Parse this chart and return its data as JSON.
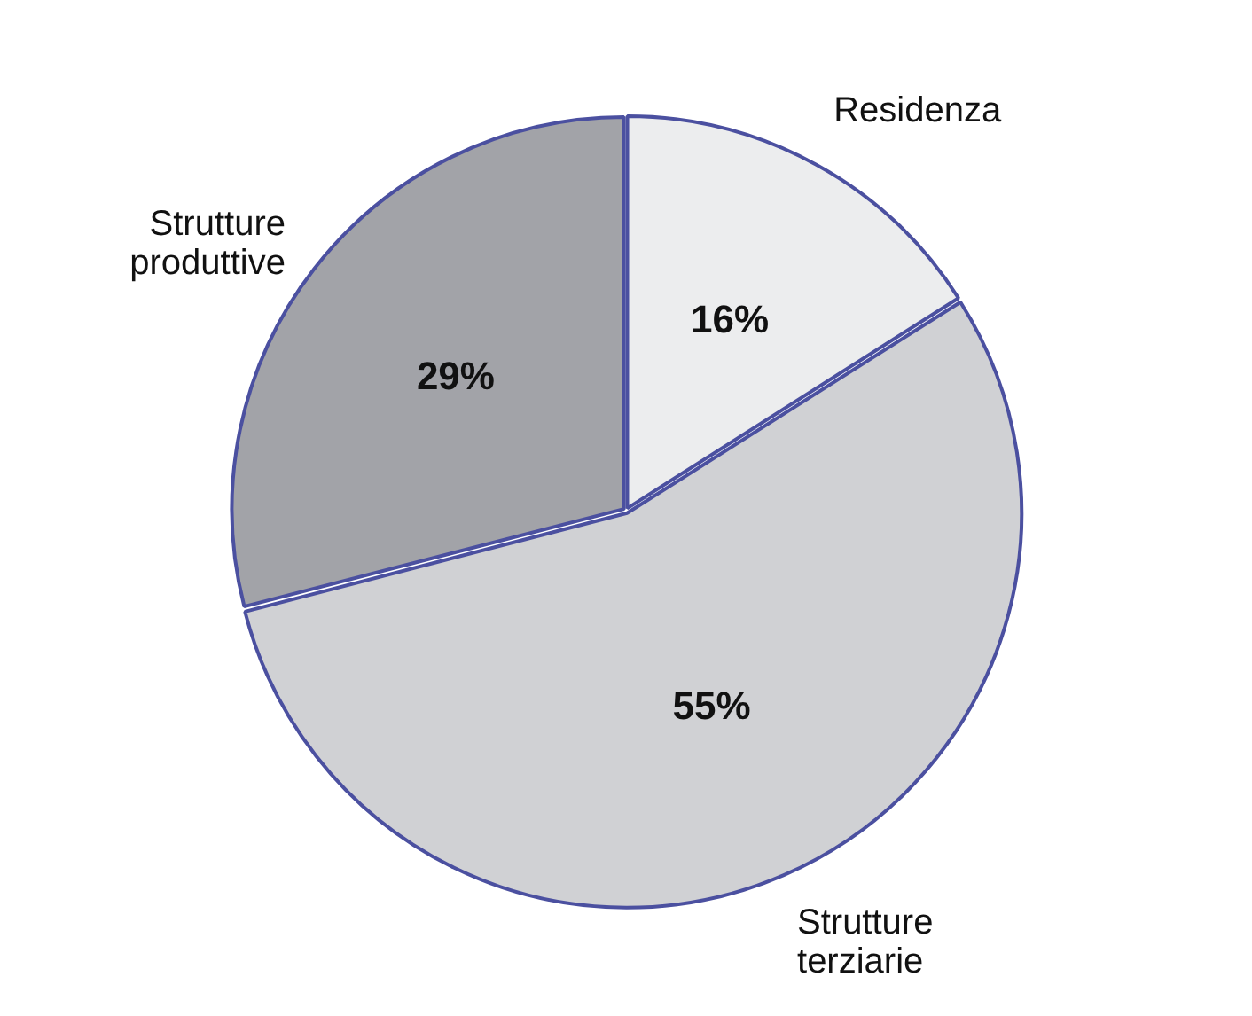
{
  "chart_data": {
    "type": "pie",
    "categories": [
      "Residenza",
      "Strutture terziarie",
      "Strutture produttive"
    ],
    "values": [
      16,
      55,
      29
    ],
    "value_labels": [
      "16%",
      "55%",
      "29%"
    ],
    "colors": [
      "#ecedee",
      "#d0d1d4",
      "#a2a3a8"
    ]
  }
}
